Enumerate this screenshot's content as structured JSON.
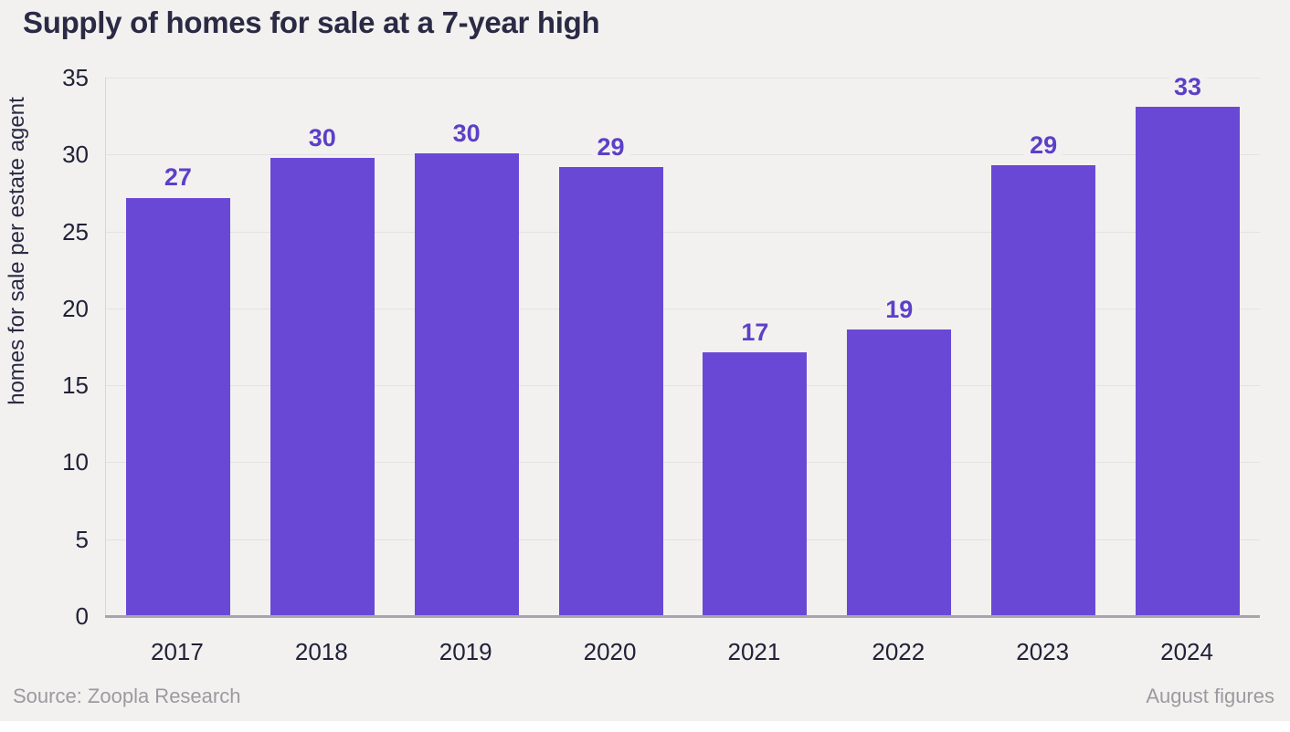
{
  "title": "Supply of homes for sale at a 7-year high",
  "footer": {
    "source": "Source: Zoopla Research",
    "note": "August figures"
  },
  "colors": {
    "canvas_background": "#f2f1ef",
    "bar": "#6a48d6",
    "value_label": "#5b40c8",
    "title_text": "#2b2a45",
    "tick_text": "#212138",
    "muted_text": "#9b9aa0",
    "gridline": "#e4e2e0",
    "axis_line": "#a6a5ab"
  },
  "chart_data": {
    "type": "bar",
    "title": "Supply of homes for sale at a 7-year high",
    "categories": [
      "2017",
      "2018",
      "2019",
      "2020",
      "2021",
      "2022",
      "2023",
      "2024"
    ],
    "values": [
      27,
      30,
      30,
      29,
      17,
      19,
      29,
      33
    ],
    "precise_values": [
      27.2,
      29.8,
      30.1,
      29.2,
      17.15,
      18.65,
      29.3,
      33.1
    ],
    "value_labels_shown": true,
    "xlabel": "",
    "ylabel": "homes for sale per estate agent",
    "ylim": [
      0,
      35
    ],
    "yticks": [
      0,
      5,
      10,
      15,
      20,
      25,
      30,
      35
    ],
    "grid": "horizontal",
    "legend_position": "none",
    "annotations": []
  }
}
